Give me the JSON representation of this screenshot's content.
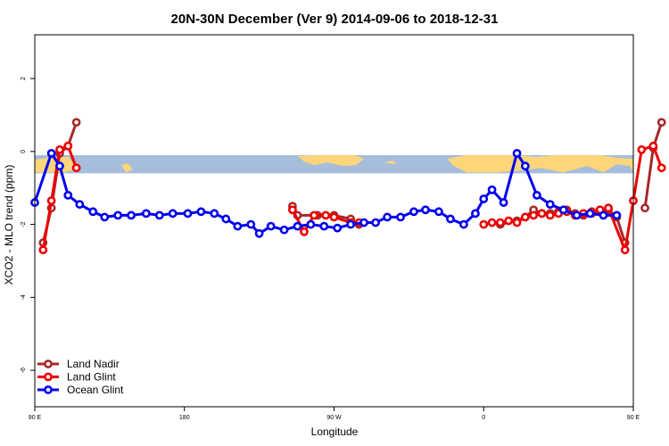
{
  "chart_data": {
    "type": "line",
    "title": "20N-30N December (Ver 9)   2014-09-06 to 2018-12-31",
    "xlabel": "Longitude",
    "ylabel": "XCO2 - MLO trend (ppm)",
    "xlim": [
      90,
      450
    ],
    "ylim": [
      -7,
      3.2
    ],
    "x_ticks": [
      {
        "value": 90,
        "label": "90 E"
      },
      {
        "value": 180,
        "label": "180"
      },
      {
        "value": 270,
        "label": "90 W"
      },
      {
        "value": 360,
        "label": "0"
      },
      {
        "value": 450,
        "label": "90 E"
      },
      {
        "value": 540,
        "label": "180"
      }
    ],
    "y_ticks": [
      {
        "value": 2,
        "label": "2"
      },
      {
        "value": 0,
        "label": "0"
      },
      {
        "value": -2,
        "label": "-2"
      },
      {
        "value": -4,
        "label": "-4"
      },
      {
        "value": -6,
        "label": "-6"
      }
    ],
    "legend_position": "bottom-left",
    "map_strip": {
      "y_top": -0.1,
      "y_bottom": -0.6,
      "ocean_color": "#a6bddb",
      "land_color": "#fdd67a"
    },
    "series": [
      {
        "name": "Land Nadir",
        "color": "#a52a2a",
        "segments": [
          [
            [
              95,
              -2.5
            ],
            [
              100,
              -1.55
            ],
            [
              105,
              -0.05
            ],
            [
              110,
              0.15
            ],
            [
              115,
              0.8
            ]
          ],
          [
            [
              245,
              -1.5
            ],
            [
              248,
              -1.75
            ],
            [
              260,
              -1.75
            ],
            [
              270,
              -1.75
            ],
            [
              280,
              -1.85
            ],
            [
              285,
              -2.0
            ]
          ],
          [
            [
              370,
              -2.0
            ],
            [
              380,
              -1.9
            ],
            [
              385,
              -1.8
            ],
            [
              390,
              -1.6
            ],
            [
              395,
              -1.7
            ],
            [
              400,
              -1.7
            ],
            [
              405,
              -1.65
            ],
            [
              410,
              -1.6
            ],
            [
              415,
              -1.7
            ],
            [
              420,
              -1.75
            ],
            [
              425,
              -1.7
            ],
            [
              430,
              -1.6
            ],
            [
              435,
              -1.6
            ],
            [
              440,
              -1.8
            ],
            [
              445,
              -2.5
            ]
          ],
          [
            [
              457,
              -1.55
            ],
            [
              462,
              0.1
            ],
            [
              467,
              0.8
            ]
          ]
        ]
      },
      {
        "name": "Land Glint",
        "color": "#ee0000",
        "segments": [
          [
            [
              95,
              -2.7
            ],
            [
              100,
              -1.35
            ],
            [
              105,
              0.05
            ],
            [
              110,
              0.15
            ],
            [
              115,
              -0.45
            ]
          ],
          [
            [
              245,
              -1.6
            ],
            [
              252,
              -2.2
            ],
            [
              258,
              -1.75
            ],
            [
              265,
              -1.75
            ],
            [
              270,
              -1.8
            ],
            [
              280,
              -1.95
            ],
            [
              285,
              -1.95
            ]
          ],
          [
            [
              360,
              -2.0
            ],
            [
              365,
              -1.95
            ],
            [
              370,
              -1.95
            ],
            [
              375,
              -1.9
            ],
            [
              380,
              -1.95
            ],
            [
              385,
              -1.8
            ],
            [
              390,
              -1.75
            ],
            [
              395,
              -1.7
            ],
            [
              400,
              -1.75
            ],
            [
              405,
              -1.7
            ],
            [
              410,
              -1.65
            ],
            [
              415,
              -1.75
            ],
            [
              420,
              -1.7
            ],
            [
              425,
              -1.65
            ],
            [
              430,
              -1.6
            ],
            [
              435,
              -1.55
            ],
            [
              445,
              -2.7
            ],
            [
              450,
              -1.35
            ],
            [
              455,
              0.05
            ],
            [
              462,
              0.15
            ],
            [
              467,
              -0.45
            ]
          ]
        ]
      },
      {
        "name": "Ocean Glint",
        "color": "#0000ee",
        "segments": [
          [
            [
              90,
              -1.4
            ],
            [
              100,
              -0.05
            ],
            [
              105,
              -0.4
            ],
            [
              110,
              -1.2
            ],
            [
              117,
              -1.45
            ],
            [
              125,
              -1.65
            ],
            [
              132,
              -1.8
            ],
            [
              140,
              -1.75
            ],
            [
              148,
              -1.75
            ],
            [
              157,
              -1.7
            ],
            [
              165,
              -1.75
            ],
            [
              173,
              -1.7
            ],
            [
              182,
              -1.7
            ],
            [
              190,
              -1.65
            ],
            [
              198,
              -1.7
            ],
            [
              205,
              -1.85
            ],
            [
              212,
              -2.05
            ],
            [
              220,
              -2.0
            ],
            [
              225,
              -2.25
            ],
            [
              232,
              -2.05
            ],
            [
              240,
              -2.15
            ],
            [
              248,
              -2.05
            ],
            [
              256,
              -2.0
            ],
            [
              264,
              -2.05
            ],
            [
              272,
              -2.1
            ],
            [
              280,
              -2.0
            ],
            [
              288,
              -1.95
            ],
            [
              295,
              -1.95
            ],
            [
              302,
              -1.8
            ],
            [
              310,
              -1.8
            ],
            [
              318,
              -1.65
            ],
            [
              325,
              -1.6
            ],
            [
              333,
              -1.65
            ],
            [
              340,
              -1.85
            ],
            [
              348,
              -2.0
            ],
            [
              355,
              -1.7
            ],
            [
              360,
              -1.3
            ],
            [
              365,
              -1.05
            ],
            [
              372,
              -1.4
            ],
            [
              380,
              -0.05
            ],
            [
              385,
              -0.4
            ],
            [
              392,
              -1.2
            ],
            [
              400,
              -1.45
            ],
            [
              408,
              -1.6
            ],
            [
              416,
              -1.75
            ],
            [
              424,
              -1.7
            ],
            [
              432,
              -1.75
            ],
            [
              440,
              -1.75
            ]
          ]
        ]
      }
    ]
  }
}
